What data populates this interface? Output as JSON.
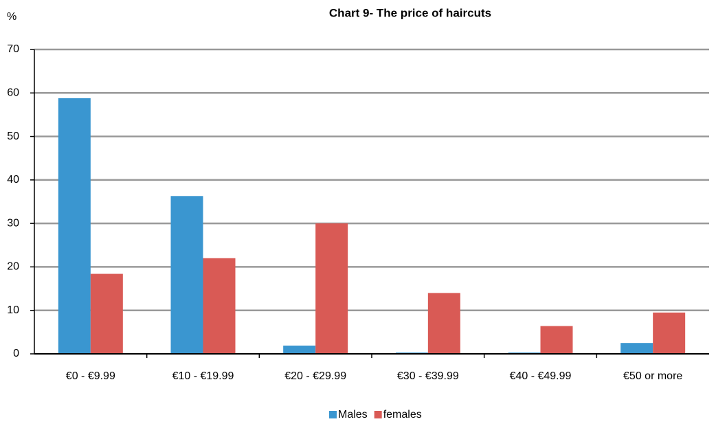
{
  "chart_data": {
    "type": "bar",
    "title": "Chart 9- The price of haircuts",
    "y_label": "%",
    "categories": [
      "€0 - €9.99",
      "€10 - €19.99",
      "€20 - €29.99",
      "€30 - €39.99",
      "€40 - €49.99",
      "€50 or more"
    ],
    "series": [
      {
        "name": "Males",
        "color": "#3a96d0",
        "values": [
          58.8,
          36.3,
          1.9,
          0.3,
          0.3,
          2.5
        ]
      },
      {
        "name": "females",
        "color": "#d95a55",
        "values": [
          18.4,
          22,
          30,
          14,
          6.4,
          9.5
        ]
      }
    ],
    "ylim": [
      0,
      70
    ],
    "yticks": [
      0,
      10,
      20,
      30,
      40,
      50,
      60,
      70
    ],
    "grid": true,
    "legend": "bottom"
  }
}
